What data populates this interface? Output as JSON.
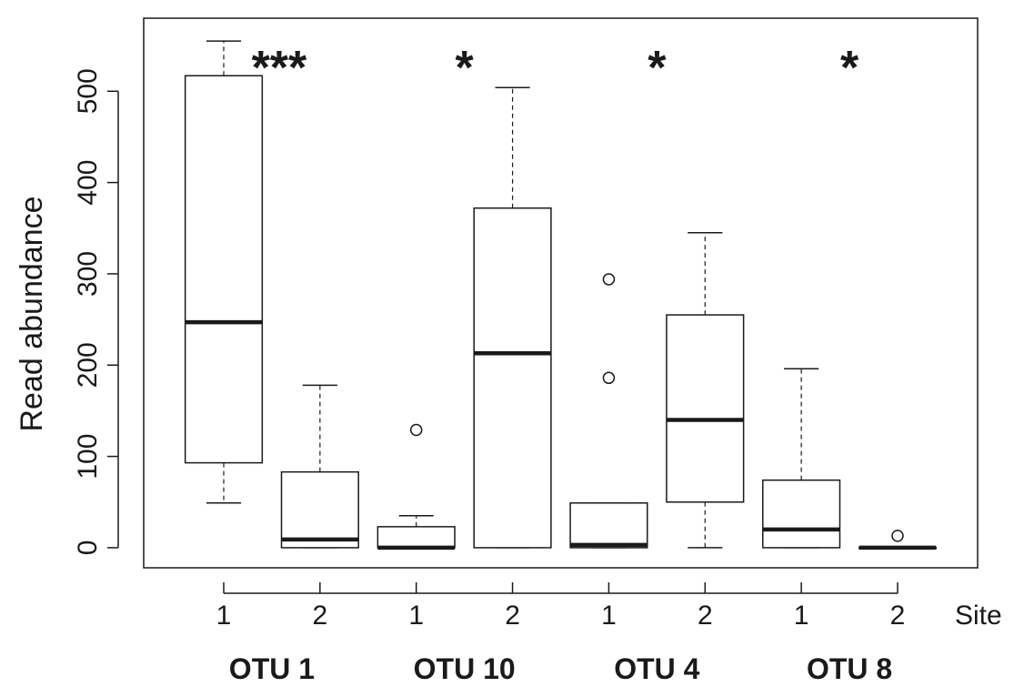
{
  "chart_data": {
    "type": "boxplot",
    "ylabel": "Read abundance",
    "ylim": [
      -22,
      580
    ],
    "yticks": [
      0,
      100,
      200,
      300,
      400,
      500
    ],
    "x_axis_label": "Site",
    "groups": [
      {
        "label": "OTU 1",
        "significance": "***",
        "boxes": [
          {
            "site": "1",
            "whisker_low": 49,
            "q1": 93,
            "median": 247,
            "q3": 517,
            "whisker_high": 555,
            "outliers": []
          },
          {
            "site": "2",
            "whisker_low": 0,
            "q1": 0,
            "median": 9,
            "q3": 83,
            "whisker_high": 178,
            "outliers": []
          }
        ]
      },
      {
        "label": "OTU 10",
        "significance": "*",
        "boxes": [
          {
            "site": "1",
            "whisker_low": 0,
            "q1": 0,
            "median": 0,
            "q3": 23,
            "whisker_high": 35,
            "outliers": [
              129
            ]
          },
          {
            "site": "2",
            "whisker_low": 0,
            "q1": 0,
            "median": 213,
            "q3": 372,
            "whisker_high": 504,
            "outliers": []
          }
        ]
      },
      {
        "label": "OTU 4",
        "significance": "*",
        "boxes": [
          {
            "site": "1",
            "whisker_low": 0,
            "q1": 0,
            "median": 3,
            "q3": 49,
            "whisker_high": 49,
            "outliers": [
              186,
              294
            ]
          },
          {
            "site": "2",
            "whisker_low": 0,
            "q1": 50,
            "median": 140,
            "q3": 255,
            "whisker_high": 345,
            "outliers": []
          }
        ]
      },
      {
        "label": "OTU 8",
        "significance": "*",
        "boxes": [
          {
            "site": "1",
            "whisker_low": 0,
            "q1": 0,
            "median": 20,
            "q3": 74,
            "whisker_high": 196,
            "outliers": []
          },
          {
            "site": "2",
            "whisker_low": 0,
            "q1": 0,
            "median": 0,
            "q3": 0,
            "whisker_high": 0,
            "outliers": [
              13
            ]
          }
        ]
      }
    ],
    "legend": "none",
    "grid": false
  }
}
